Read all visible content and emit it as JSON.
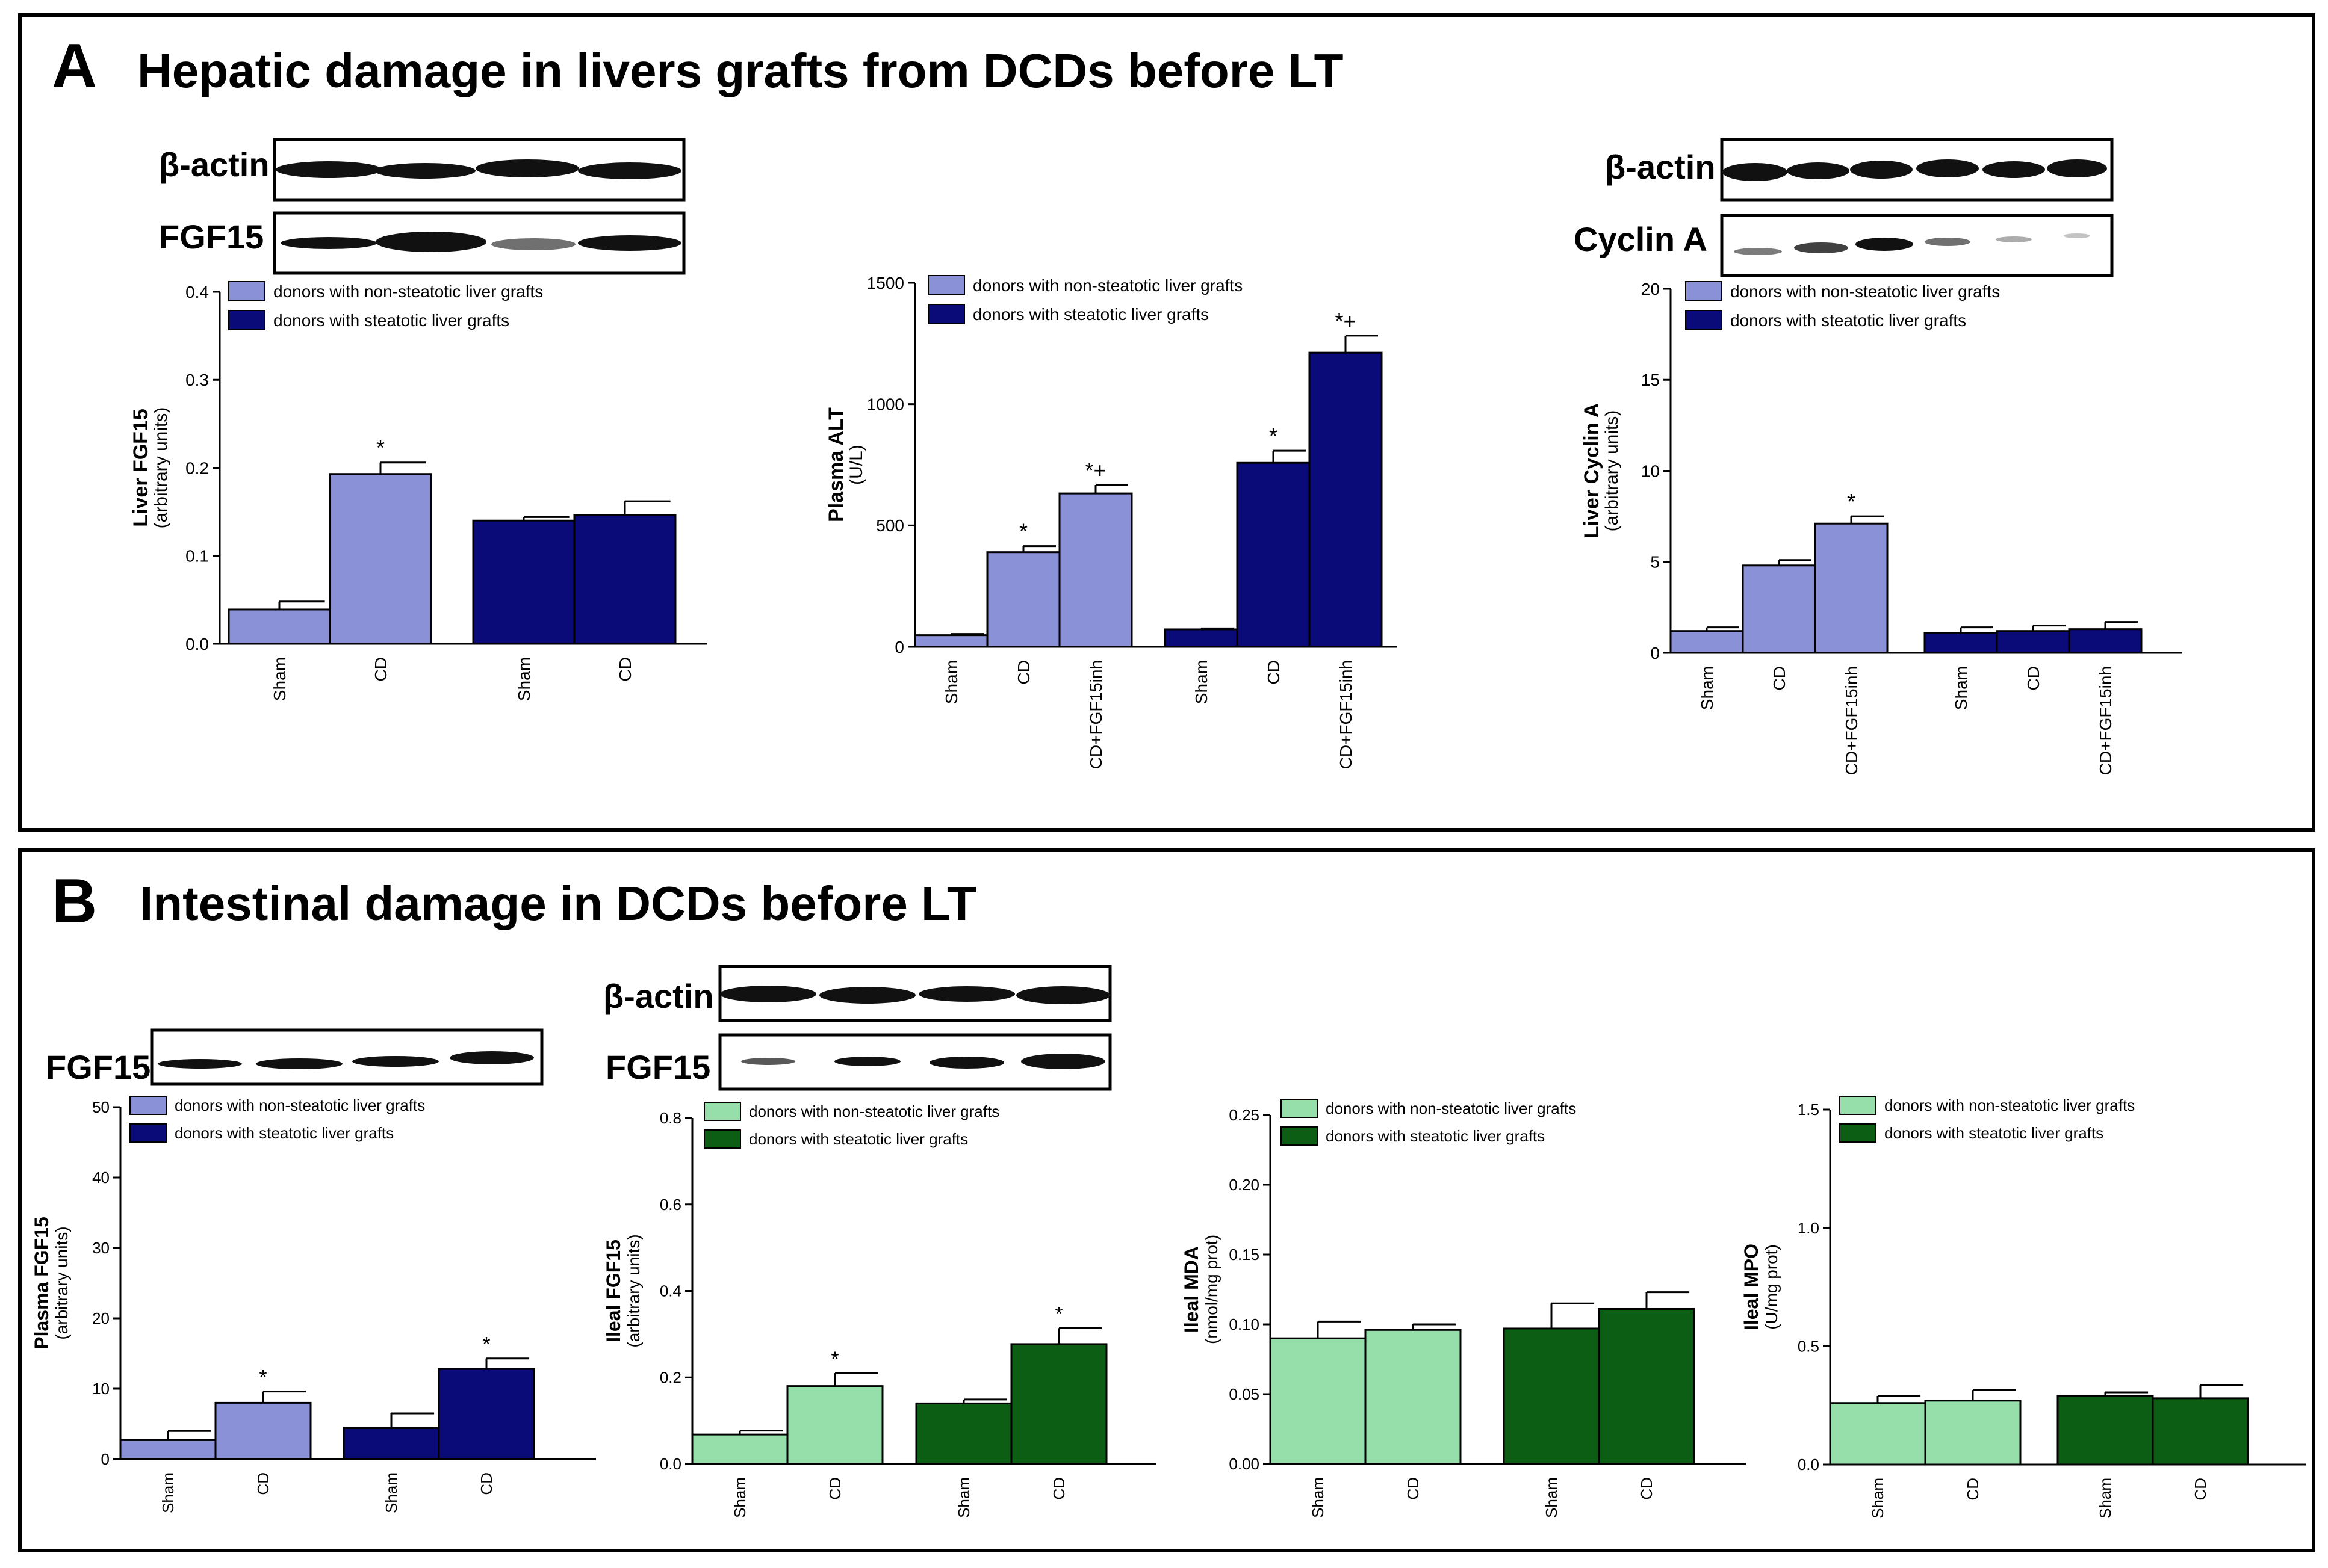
{
  "panelA": {
    "label": "A",
    "title": "Hepatic damage in livers grafts from DCDs before LT",
    "blots": {
      "fgf15_actin": "β-actin",
      "fgf15": "FGF15",
      "cyclin_actin": "β-actin",
      "cyclin": "Cyclin A"
    }
  },
  "panelB": {
    "label": "B",
    "title": "Intestinal damage in DCDs before LT",
    "blots": {
      "plasma_fgf15": "FGF15",
      "ileal_actin": "β-actin",
      "ileal_fgf15": "FGF15"
    }
  },
  "colors": {
    "light_blue": "#8b91d6",
    "dark_blue": "#0a0a78",
    "light_green": "#96dfaa",
    "dark_green": "#0c5e14"
  },
  "chart_data": [
    {
      "id": "liver_fgf15",
      "type": "bar",
      "ylabel": "Liver FGF15",
      "ylabel2": "(arbitrary units)",
      "ylim": [
        0,
        0.4
      ],
      "yticks": [
        "0.0",
        "0.1",
        "0.2",
        "0.3",
        "0.4"
      ],
      "legend": [
        "donors with non-steatotic liver grafts",
        "donors with steatotic liver grafts"
      ],
      "palette": "blue",
      "series": [
        {
          "name": "donors with non-steatotic liver grafts",
          "categories": [
            "Sham",
            "CD"
          ],
          "values": [
            0.039,
            0.193
          ],
          "errors": [
            0.009,
            0.013
          ],
          "marks": [
            "",
            "*"
          ]
        },
        {
          "name": "donors with steatotic liver grafts",
          "categories": [
            "Sham",
            "CD"
          ],
          "values": [
            0.14,
            0.146
          ],
          "errors": [
            0.004,
            0.016
          ],
          "marks": [
            "",
            ""
          ]
        }
      ]
    },
    {
      "id": "plasma_alt",
      "type": "bar",
      "ylabel": "Plasma ALT",
      "ylabel2": "(U/L)",
      "ylim": [
        0,
        1500
      ],
      "yticks": [
        "0",
        "500",
        "1000",
        "1500"
      ],
      "legend": [
        "donors with non-steatotic liver grafts",
        "donors with steatotic liver grafts"
      ],
      "palette": "blue",
      "series": [
        {
          "name": "donors with non-steatotic liver grafts",
          "categories": [
            "Sham",
            "CD",
            "CD+FGF15inh"
          ],
          "values": [
            48,
            390,
            632
          ],
          "errors": [
            5,
            25,
            35
          ],
          "marks": [
            "",
            "*",
            "*+"
          ]
        },
        {
          "name": "donors with steatotic liver grafts",
          "categories": [
            "Sham",
            "CD",
            "CD+FGF15inh"
          ],
          "values": [
            72,
            758,
            1212
          ],
          "errors": [
            4,
            50,
            70
          ],
          "marks": [
            "",
            "*",
            "*+"
          ]
        }
      ]
    },
    {
      "id": "liver_cyclin_a",
      "type": "bar",
      "ylabel": "Liver  Cyclin A",
      "ylabel2": "(arbitrary units)",
      "ylim": [
        0,
        20
      ],
      "yticks": [
        "0",
        "5",
        "10",
        "15",
        "20"
      ],
      "legend": [
        "donors with non-steatotic liver grafts",
        "donors with steatotic liver grafts"
      ],
      "palette": "blue",
      "series": [
        {
          "name": "donors with non-steatotic liver grafts",
          "categories": [
            "Sham",
            "CD",
            "CD+FGF15inh"
          ],
          "values": [
            1.2,
            4.8,
            7.1
          ],
          "errors": [
            0.2,
            0.3,
            0.4
          ],
          "marks": [
            "",
            "",
            "*"
          ]
        },
        {
          "name": "donors with steatotic liver grafts",
          "categories": [
            "Sham",
            "CD",
            "CD+FGF15inh"
          ],
          "values": [
            1.1,
            1.2,
            1.3
          ],
          "errors": [
            0.3,
            0.3,
            0.4
          ],
          "marks": [
            "",
            "",
            ""
          ]
        }
      ]
    },
    {
      "id": "plasma_fgf15",
      "type": "bar",
      "ylabel": "Plasma FGF15",
      "ylabel2": "(arbitrary units)",
      "ylim": [
        0,
        50
      ],
      "yticks": [
        "0",
        "10",
        "20",
        "30",
        "40",
        "50"
      ],
      "legend": [
        "donors with non-steatotic liver grafts",
        "donors with steatotic liver grafts"
      ],
      "palette": "blue",
      "series": [
        {
          "name": "donors with non-steatotic liver grafts",
          "categories": [
            "Sham",
            "CD"
          ],
          "values": [
            2.7,
            8.0
          ],
          "errors": [
            1.3,
            1.6
          ],
          "marks": [
            "",
            "*"
          ]
        },
        {
          "name": "donors with steatotic liver grafts",
          "categories": [
            "Sham",
            "CD"
          ],
          "values": [
            4.4,
            12.8
          ],
          "errors": [
            2.1,
            1.5
          ],
          "marks": [
            "",
            "*"
          ]
        }
      ]
    },
    {
      "id": "ileal_fgf15",
      "type": "bar",
      "ylabel": "Ileal FGF15",
      "ylabel2": "(arbitrary units)",
      "ylim": [
        0,
        0.8
      ],
      "yticks": [
        "0.0",
        "0.2",
        "0.4",
        "0.6",
        "0.8"
      ],
      "legend": [
        "donors with non-steatotic liver grafts",
        "donors with steatotic liver grafts"
      ],
      "palette": "green",
      "series": [
        {
          "name": "donors with non-steatotic liver grafts",
          "categories": [
            "Sham",
            "CD"
          ],
          "values": [
            0.068,
            0.18
          ],
          "errors": [
            0.009,
            0.03
          ],
          "marks": [
            "",
            "*"
          ]
        },
        {
          "name": "donors with steatotic liver grafts",
          "categories": [
            "Sham",
            "CD"
          ],
          "values": [
            0.14,
            0.277
          ],
          "errors": [
            0.009,
            0.037
          ],
          "marks": [
            "",
            "*"
          ]
        }
      ]
    },
    {
      "id": "ileal_mda",
      "type": "bar",
      "ylabel": "Ileal MDA",
      "ylabel2": "(nmol/mg prot)",
      "ylim": [
        0,
        0.25
      ],
      "yticks": [
        "0.00",
        "0.05",
        "0.10",
        "0.15",
        "0.20",
        "0.25"
      ],
      "legend": [
        "donors with non-steatotic liver grafts",
        "donors with steatotic liver grafts"
      ],
      "palette": "green",
      "series": [
        {
          "name": "donors with non-steatotic liver grafts",
          "categories": [
            "Sham",
            "CD"
          ],
          "values": [
            0.09,
            0.096
          ],
          "errors": [
            0.012,
            0.004
          ],
          "marks": [
            "",
            ""
          ]
        },
        {
          "name": "donors with steatotic liver grafts",
          "categories": [
            "Sham",
            "CD"
          ],
          "values": [
            0.097,
            0.111
          ],
          "errors": [
            0.018,
            0.012
          ],
          "marks": [
            "",
            ""
          ]
        }
      ]
    },
    {
      "id": "ileal_mpo",
      "type": "bar",
      "ylabel": "Ileal MPO",
      "ylabel2": "(U/mg prot)",
      "ylim": [
        0,
        1.5
      ],
      "yticks": [
        "0.0",
        "0.5",
        "1.0",
        "1.5"
      ],
      "legend": [
        "donors with non-steatotic liver grafts",
        "donors with steatotic liver grafts"
      ],
      "palette": "green",
      "series": [
        {
          "name": "donors with non-steatotic liver grafts",
          "categories": [
            "Sham",
            "CD"
          ],
          "values": [
            0.26,
            0.27
          ],
          "errors": [
            0.03,
            0.045
          ],
          "marks": [
            "",
            ""
          ]
        },
        {
          "name": "donors with steatotic liver grafts",
          "categories": [
            "Sham",
            "CD"
          ],
          "values": [
            0.29,
            0.28
          ],
          "errors": [
            0.015,
            0.055
          ],
          "marks": [
            "",
            ""
          ]
        }
      ]
    }
  ]
}
